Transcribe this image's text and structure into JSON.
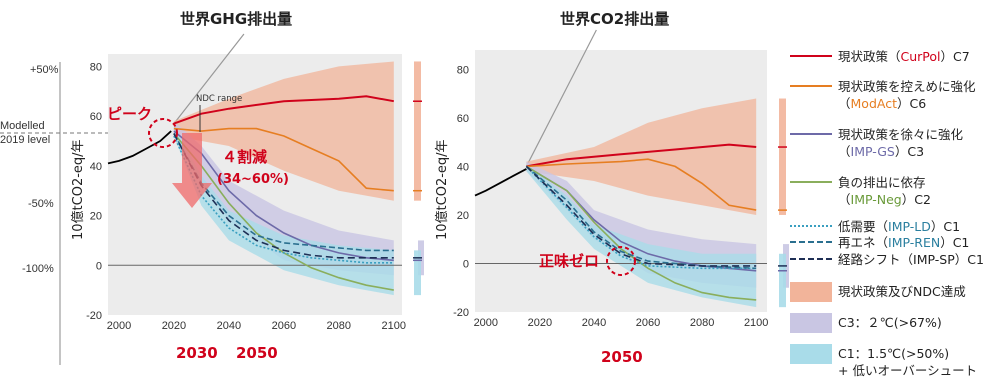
{
  "titles": {
    "left": "世界GHG排出量",
    "right": "世界CO2排出量"
  },
  "left_labels": {
    "pct_plus50": "+50%",
    "modelled": "Modelled\n2019 level",
    "pct_minus50": "-50%",
    "pct_minus100": "-100%",
    "peak": "ピーク",
    "ndc_range": "NDC range",
    "reduction_title": "４割減",
    "reduction_range": "(34~60%)",
    "year_2030": "2030",
    "year_2050": "2050"
  },
  "right_labels": {
    "net_zero": "正味ゼロ",
    "year_2050": "2050"
  },
  "legend": {
    "items": [
      {
        "pre": "現状政策（",
        "key": "CurPol",
        "post": "）C7",
        "color": "#d0021b",
        "style": "solid"
      },
      {
        "pre": "現状政策を控えめに強化\n（",
        "key": "ModAct",
        "post": "）C6",
        "color": "#e67e22",
        "style": "solid"
      },
      {
        "pre": "現状政策を徐々に強化\n（",
        "key": "IMP-GS",
        "post": "）C3",
        "color": "#6d6aa8",
        "style": "solid"
      },
      {
        "pre": "負の排出に依存\n（",
        "key": "IMP-Neg",
        "post": "）C2",
        "color": "#8aae5c",
        "style": "solid"
      },
      {
        "pre": "低需要（",
        "key": "IMP-LD",
        "post": "）C1",
        "color": "#3a9fc0",
        "style": "dotted"
      },
      {
        "pre": "再エネ（",
        "key": "IMP-REN",
        "post": "）C1",
        "color": "#2a6f8f",
        "style": "dashed"
      },
      {
        "pre": "経路シフト（",
        "key": "IMP-SP",
        "post": "）C1",
        "color": "#1e2f55",
        "style": "dashed"
      },
      {
        "pre": "現状政策及びNDC達成",
        "key": "",
        "post": "",
        "color": "#f2b49a",
        "style": "band"
      },
      {
        "pre": "C3：２℃(>67%)",
        "key": "",
        "post": "",
        "color": "#c9c6e3",
        "style": "band"
      },
      {
        "pre": "C1：1.5℃(>50%)\n+ 低いオーバーシュート",
        "key": "",
        "post": "",
        "color": "#a9dce9",
        "style": "band"
      }
    ]
  },
  "chart_data": [
    {
      "type": "line",
      "title": "世界GHG排出量",
      "ylabel": "10億tCO2-eq/年",
      "xlabel": "",
      "xlim": [
        1996,
        2103
      ],
      "ylim": [
        -20,
        85
      ],
      "x_ticks": [
        2000,
        2020,
        2040,
        2060,
        2080,
        2100
      ],
      "y_ticks": [
        -20,
        0,
        20,
        40,
        60,
        80
      ],
      "grid": false,
      "series": [
        {
          "name": "CurPol",
          "color": "#d0021b",
          "dash": "",
          "x": [
            2020,
            2030,
            2040,
            2060,
            2080,
            2090,
            2100
          ],
          "y": [
            57,
            61,
            63,
            66,
            67,
            68,
            66
          ]
        },
        {
          "name": "ModAct",
          "color": "#e67e22",
          "dash": "",
          "x": [
            2020,
            2030,
            2040,
            2050,
            2060,
            2070,
            2080,
            2090,
            2100
          ],
          "y": [
            55,
            54,
            55,
            55,
            52,
            47,
            42,
            31,
            30
          ]
        },
        {
          "name": "IMP-GS",
          "color": "#6d6aa8",
          "dash": "",
          "x": [
            2020,
            2030,
            2040,
            2050,
            2060,
            2070,
            2080,
            2090,
            2100
          ],
          "y": [
            54,
            45,
            30,
            20,
            13,
            8,
            5,
            3,
            2
          ]
        },
        {
          "name": "IMP-Neg",
          "color": "#8aae5c",
          "dash": "",
          "x": [
            2020,
            2030,
            2040,
            2050,
            2060,
            2070,
            2080,
            2090,
            2100
          ],
          "y": [
            53,
            40,
            25,
            13,
            5,
            -1,
            -5,
            -8,
            -10
          ]
        },
        {
          "name": "IMP-LD",
          "color": "#3a9fc0",
          "dash": "2,2",
          "x": [
            2020,
            2030,
            2040,
            2050,
            2060,
            2070,
            2080,
            2090,
            2100
          ],
          "y": [
            52,
            28,
            15,
            8,
            5,
            3,
            2,
            1,
            1
          ]
        },
        {
          "name": "IMP-REN",
          "color": "#2a6f8f",
          "dash": "6,3",
          "x": [
            2020,
            2030,
            2040,
            2050,
            2060,
            2070,
            2080,
            2090,
            2100
          ],
          "y": [
            53,
            33,
            20,
            12,
            9,
            8,
            7,
            6,
            6
          ]
        },
        {
          "name": "IMP-SP",
          "color": "#1e2f55",
          "dash": "7,4",
          "x": [
            2020,
            2030,
            2040,
            2050,
            2060,
            2070,
            2080,
            2090,
            2100
          ],
          "y": [
            53,
            32,
            18,
            10,
            6,
            4,
            3,
            3,
            3
          ]
        },
        {
          "name": "Historical",
          "color": "#000000",
          "dash": "",
          "x": [
            1996,
            2000,
            2005,
            2010,
            2015,
            2019
          ],
          "y": [
            41,
            42,
            44,
            47,
            50,
            54
          ]
        }
      ],
      "bands": [
        {
          "name": "現状政策及びNDC達成",
          "color": "#f2b49a",
          "x": [
            2020,
            2040,
            2060,
            2080,
            2100
          ],
          "lower": [
            52,
            48,
            38,
            30,
            26
          ],
          "upper": [
            58,
            67,
            75,
            80,
            82
          ]
        },
        {
          "name": "C3",
          "color": "#c9c6e3",
          "x": [
            2020,
            2030,
            2040,
            2060,
            2080,
            2100
          ],
          "lower": [
            52,
            33,
            18,
            2,
            -2,
            -4
          ],
          "upper": [
            58,
            48,
            34,
            22,
            14,
            10
          ]
        },
        {
          "name": "C1",
          "color": "#a9dce9",
          "x": [
            2020,
            2030,
            2040,
            2060,
            2080,
            2100
          ],
          "lower": [
            52,
            24,
            10,
            -2,
            -8,
            -12
          ],
          "upper": [
            56,
            36,
            22,
            12,
            8,
            6
          ]
        }
      ]
    },
    {
      "type": "line",
      "title": "世界CO2排出量",
      "ylabel": "10億tCO2-eq/年",
      "xlabel": "",
      "xlim": [
        1996,
        2104
      ],
      "ylim": [
        -20,
        88
      ],
      "x_ticks": [
        2000,
        2020,
        2040,
        2060,
        2080,
        2100
      ],
      "y_ticks": [
        -20,
        0,
        20,
        40,
        60,
        80
      ],
      "grid": false,
      "series": [
        {
          "name": "CurPol",
          "color": "#d0021b",
          "dash": "",
          "x": [
            2015,
            2030,
            2050,
            2070,
            2090,
            2100
          ],
          "y": [
            40,
            43,
            45,
            47,
            49,
            48
          ]
        },
        {
          "name": "ModAct",
          "color": "#e67e22",
          "dash": "",
          "x": [
            2015,
            2030,
            2050,
            2060,
            2070,
            2080,
            2090,
            2100
          ],
          "y": [
            40,
            41,
            42,
            43,
            40,
            33,
            24,
            22
          ]
        },
        {
          "name": "IMP-GS",
          "color": "#6d6aa8",
          "dash": "",
          "x": [
            2015,
            2030,
            2040,
            2050,
            2060,
            2070,
            2080,
            2100
          ],
          "y": [
            40,
            30,
            18,
            9,
            4,
            1,
            -1,
            -3
          ]
        },
        {
          "name": "IMP-Neg",
          "color": "#8aae5c",
          "dash": "",
          "x": [
            2015,
            2030,
            2040,
            2050,
            2060,
            2070,
            2080,
            2090,
            2100
          ],
          "y": [
            40,
            30,
            17,
            6,
            -2,
            -8,
            -12,
            -14,
            -15
          ]
        },
        {
          "name": "IMP-LD",
          "color": "#3a9fc0",
          "dash": "2,2",
          "x": [
            2015,
            2030,
            2040,
            2050,
            2060,
            2080,
            2100
          ],
          "y": [
            40,
            23,
            11,
            3,
            -1,
            -2,
            -2
          ]
        },
        {
          "name": "IMP-REN",
          "color": "#2a6f8f",
          "dash": "6,3",
          "x": [
            2015,
            2030,
            2040,
            2050,
            2060,
            2080,
            2100
          ],
          "y": [
            40,
            26,
            13,
            5,
            1,
            -1,
            -2
          ]
        },
        {
          "name": "IMP-SP",
          "color": "#1e2f55",
          "dash": "7,4",
          "x": [
            2015,
            2030,
            2040,
            2050,
            2060,
            2080,
            2100
          ],
          "y": [
            40,
            24,
            12,
            4,
            0,
            -1,
            -1
          ]
        },
        {
          "name": "Historical",
          "color": "#000000",
          "dash": "",
          "x": [
            1996,
            2000,
            2005,
            2010,
            2015
          ],
          "y": [
            28,
            30,
            33,
            36,
            39
          ]
        }
      ],
      "bands": [
        {
          "name": "現状政策及びNDC達成",
          "color": "#f2b49a",
          "x": [
            2015,
            2040,
            2060,
            2080,
            2100
          ],
          "lower": [
            38,
            34,
            28,
            24,
            20
          ],
          "upper": [
            42,
            48,
            58,
            64,
            68
          ]
        },
        {
          "name": "C3",
          "color": "#c9c6e3",
          "x": [
            2015,
            2030,
            2040,
            2060,
            2080,
            2100
          ],
          "lower": [
            38,
            22,
            10,
            -4,
            -8,
            -10
          ],
          "upper": [
            42,
            34,
            22,
            14,
            10,
            8
          ]
        },
        {
          "name": "C1",
          "color": "#a9dce9",
          "x": [
            2015,
            2030,
            2040,
            2060,
            2080,
            2100
          ],
          "lower": [
            38,
            18,
            6,
            -8,
            -14,
            -18
          ],
          "upper": [
            41,
            28,
            16,
            8,
            4,
            4
          ]
        }
      ]
    }
  ]
}
